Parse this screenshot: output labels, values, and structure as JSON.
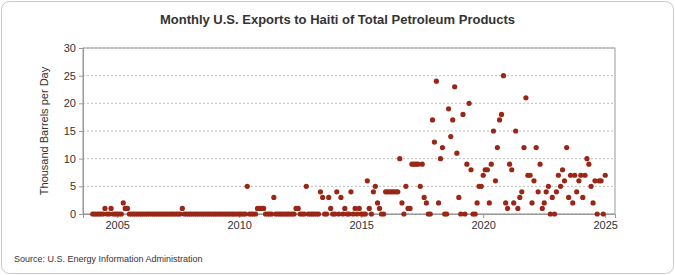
{
  "chart_data": {
    "type": "scatter",
    "title": "Monthly U.S. Exports to Haiti of Total Petroleum Products",
    "y_label": "Thousand Barrels per Day",
    "source": "Source: U.S. Energy Information Administration",
    "color": "#9a2616",
    "marker": "circle",
    "grid": true,
    "xlim": [
      2003.6,
      2025.4
    ],
    "xticks": [
      2005,
      2010,
      2015,
      2020,
      2025
    ],
    "ylim": [
      0,
      30
    ],
    "yticks": [
      0,
      5,
      10,
      15,
      20,
      25,
      30
    ],
    "x": [
      2004.0,
      2004.08,
      2004.17,
      2004.25,
      2004.33,
      2004.42,
      2004.5,
      2004.58,
      2004.67,
      2004.75,
      2004.83,
      2004.92,
      2005.0,
      2005.08,
      2005.17,
      2005.25,
      2005.33,
      2005.42,
      2005.5,
      2005.58,
      2005.67,
      2005.75,
      2005.83,
      2005.92,
      2006.0,
      2006.08,
      2006.17,
      2006.25,
      2006.33,
      2006.42,
      2006.5,
      2006.58,
      2006.67,
      2006.75,
      2006.83,
      2006.92,
      2007.0,
      2007.08,
      2007.17,
      2007.25,
      2007.33,
      2007.42,
      2007.5,
      2007.58,
      2007.67,
      2007.75,
      2007.83,
      2007.92,
      2008.0,
      2008.08,
      2008.17,
      2008.25,
      2008.33,
      2008.42,
      2008.5,
      2008.58,
      2008.67,
      2008.75,
      2008.83,
      2008.92,
      2009.0,
      2009.08,
      2009.17,
      2009.25,
      2009.33,
      2009.42,
      2009.5,
      2009.58,
      2009.67,
      2009.75,
      2009.83,
      2009.92,
      2010.0,
      2010.08,
      2010.17,
      2010.25,
      2010.33,
      2010.42,
      2010.5,
      2010.58,
      2010.67,
      2010.75,
      2010.83,
      2010.92,
      2011.0,
      2011.08,
      2011.17,
      2011.25,
      2011.33,
      2011.42,
      2011.5,
      2011.58,
      2011.67,
      2011.75,
      2011.83,
      2011.92,
      2012.0,
      2012.08,
      2012.17,
      2012.25,
      2012.33,
      2012.42,
      2012.5,
      2012.58,
      2012.67,
      2012.75,
      2012.83,
      2012.92,
      2013.0,
      2013.08,
      2013.17,
      2013.25,
      2013.33,
      2013.42,
      2013.5,
      2013.58,
      2013.67,
      2013.75,
      2013.83,
      2013.92,
      2014.0,
      2014.08,
      2014.17,
      2014.25,
      2014.33,
      2014.42,
      2014.5,
      2014.58,
      2014.67,
      2014.75,
      2014.83,
      2014.92,
      2015.0,
      2015.08,
      2015.17,
      2015.25,
      2015.33,
      2015.42,
      2015.5,
      2015.58,
      2015.67,
      2015.75,
      2015.83,
      2015.92,
      2016.0,
      2016.08,
      2016.17,
      2016.25,
      2016.33,
      2016.42,
      2016.5,
      2016.58,
      2016.67,
      2016.75,
      2016.83,
      2016.92,
      2017.0,
      2017.08,
      2017.17,
      2017.25,
      2017.33,
      2017.42,
      2017.5,
      2017.58,
      2017.67,
      2017.75,
      2017.83,
      2017.92,
      2018.0,
      2018.08,
      2018.17,
      2018.25,
      2018.33,
      2018.42,
      2018.5,
      2018.58,
      2018.67,
      2018.75,
      2018.83,
      2018.92,
      2019.0,
      2019.08,
      2019.17,
      2019.25,
      2019.33,
      2019.42,
      2019.5,
      2019.58,
      2019.67,
      2019.75,
      2019.83,
      2019.92,
      2020.0,
      2020.08,
      2020.17,
      2020.25,
      2020.33,
      2020.42,
      2020.5,
      2020.58,
      2020.67,
      2020.75,
      2020.83,
      2020.92,
      2021.0,
      2021.08,
      2021.17,
      2021.25,
      2021.33,
      2021.42,
      2021.5,
      2021.58,
      2021.67,
      2021.75,
      2021.83,
      2021.92,
      2022.0,
      2022.08,
      2022.17,
      2022.25,
      2022.33,
      2022.42,
      2022.5,
      2022.58,
      2022.67,
      2022.75,
      2022.83,
      2022.92,
      2023.0,
      2023.08,
      2023.17,
      2023.25,
      2023.33,
      2023.42,
      2023.5,
      2023.58,
      2023.67,
      2023.75,
      2023.83,
      2023.92,
      2024.0,
      2024.08,
      2024.17,
      2024.25,
      2024.33,
      2024.42,
      2024.5,
      2024.58,
      2024.67,
      2024.75,
      2024.83,
      2024.92,
      2025.0
    ],
    "values": [
      0,
      0,
      0,
      0,
      0,
      0,
      1,
      0,
      0,
      1,
      0,
      0,
      0,
      0,
      0,
      2,
      1,
      1,
      0,
      0,
      0,
      0,
      0,
      0,
      0,
      0,
      0,
      0,
      0,
      0,
      0,
      0,
      0,
      0,
      0,
      0,
      0,
      0,
      0,
      0,
      0,
      0,
      0,
      0,
      1,
      0,
      0,
      0,
      0,
      0,
      0,
      0,
      0,
      0,
      0,
      0,
      0,
      0,
      0,
      0,
      0,
      0,
      0,
      0,
      0,
      0,
      0,
      0,
      0,
      0,
      0,
      0,
      0,
      0,
      0,
      0,
      5,
      0,
      0,
      0,
      0,
      1,
      1,
      1,
      1,
      0,
      0,
      0,
      0,
      3,
      0,
      0,
      0,
      0,
      0,
      0,
      0,
      0,
      0,
      0,
      1,
      1,
      0,
      0,
      0,
      5,
      0,
      0,
      0,
      0,
      0,
      0,
      4,
      3,
      0,
      0,
      3,
      1,
      0,
      0,
      4,
      0,
      3,
      0,
      1,
      0,
      0,
      4,
      0,
      1,
      0,
      1,
      0,
      0,
      0,
      6,
      1,
      0,
      4,
      5,
      2,
      1,
      0,
      0,
      4,
      4,
      4,
      4,
      4,
      4,
      4,
      10,
      2,
      0,
      5,
      1,
      1,
      9,
      9,
      9,
      9,
      5,
      9,
      3,
      2,
      0,
      0,
      17,
      13,
      24,
      2,
      10,
      12,
      0,
      0,
      19,
      14,
      17,
      23,
      11,
      3,
      0,
      18,
      0,
      9,
      20,
      8,
      0,
      0,
      2,
      5,
      5,
      7,
      8,
      8,
      2,
      9,
      15,
      6,
      12,
      17,
      18,
      25,
      2,
      1,
      9,
      8,
      2,
      15,
      1,
      3,
      4,
      12,
      21,
      7,
      7,
      2,
      6,
      12,
      4,
      9,
      1,
      2,
      4,
      5,
      0,
      3,
      0,
      4,
      7,
      5,
      8,
      6,
      12,
      3,
      7,
      2,
      7,
      4,
      6,
      7,
      3,
      7,
      10,
      9,
      5,
      2,
      6,
      0,
      6,
      6,
      0,
      7
    ]
  }
}
